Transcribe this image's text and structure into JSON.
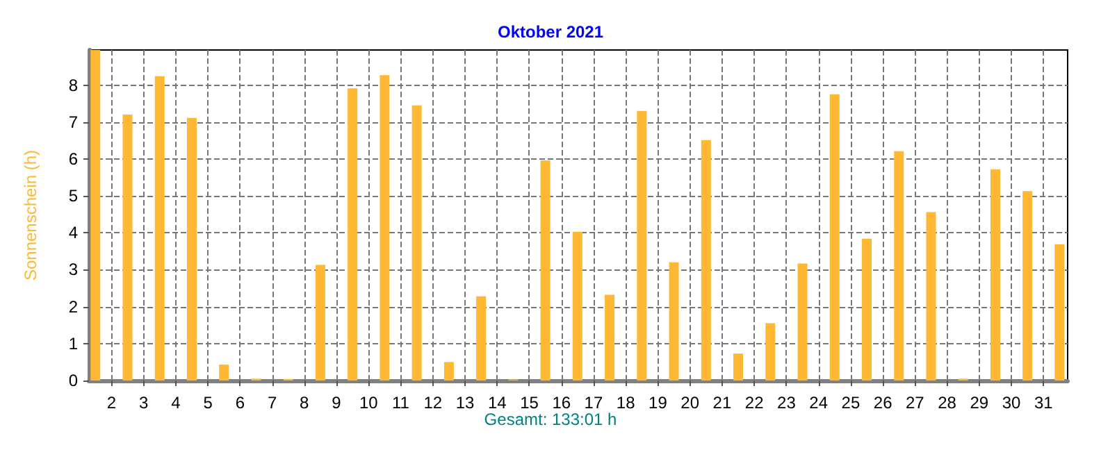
{
  "chart_data": {
    "type": "bar",
    "title": "Oktober 2021",
    "ylabel": "Sonnenschein (h)",
    "annotations": [
      "Gesamt: 133:01 h"
    ],
    "x": [
      1.5,
      2.5,
      3.5,
      4.5,
      5.5,
      6.5,
      7.5,
      8.5,
      9.5,
      10.5,
      11.5,
      12.5,
      13.5,
      14.5,
      15.5,
      16.5,
      17.5,
      18.5,
      19.5,
      20.5,
      21.5,
      22.5,
      23.5,
      24.5,
      25.5,
      26.5,
      27.5,
      28.5,
      29.5,
      30.5,
      31.5
    ],
    "values": [
      8.95,
      7.2,
      8.24,
      7.11,
      0.43,
      0.05,
      0.04,
      3.13,
      7.91,
      8.27,
      7.45,
      0.5,
      2.28,
      0.03,
      5.96,
      4.03,
      2.32,
      7.3,
      3.2,
      6.51,
      0.73,
      1.55,
      3.17,
      7.75,
      3.84,
      6.21,
      4.56,
      0.05,
      5.72,
      5.13,
      3.69
    ],
    "color": "#ffb833",
    "xlim": [
      1.3,
      31.75
    ],
    "xticks": [
      2,
      3,
      4,
      5,
      6,
      7,
      8,
      9,
      10,
      11,
      12,
      13,
      14,
      15,
      16,
      17,
      18,
      19,
      20,
      21,
      22,
      23,
      24,
      25,
      26,
      27,
      28,
      29,
      30,
      31
    ],
    "ylim": [
      0,
      8.95
    ],
    "yticks": [
      0,
      1,
      2,
      3,
      4,
      5,
      6,
      7,
      8
    ],
    "grid": true,
    "line_style": "dashed"
  }
}
